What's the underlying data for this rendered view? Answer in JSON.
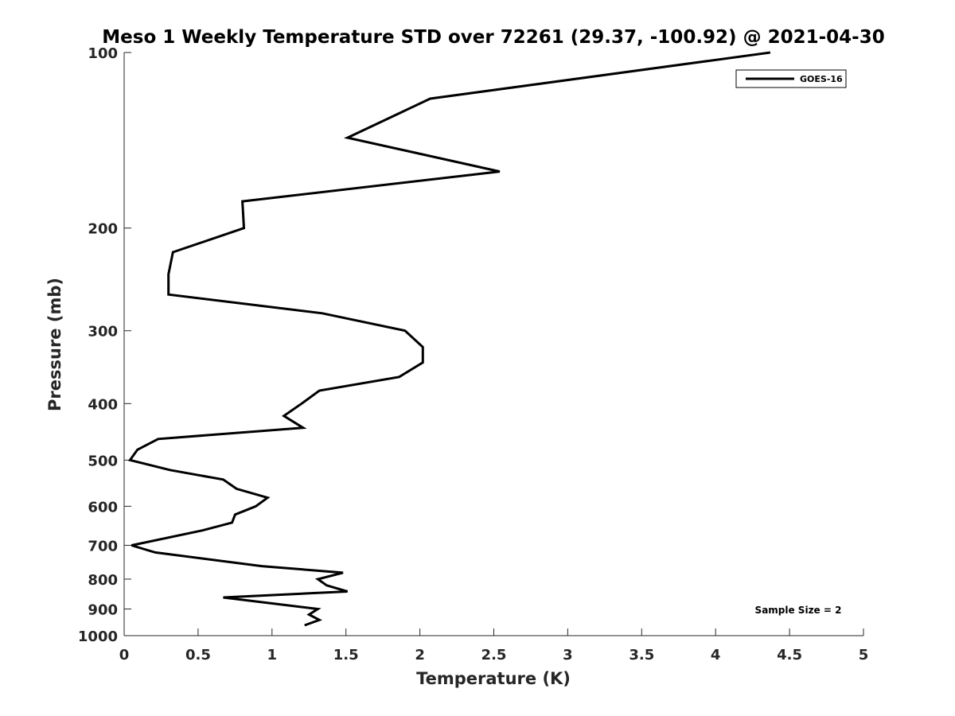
{
  "chart_data": {
    "type": "line",
    "title": "Meso 1 Weekly Temperature STD over 72261 (29.37, -100.92) @ 2021-04-30",
    "xlabel": "Temperature (K)",
    "ylabel": "Pressure (mb)",
    "xlim": [
      0,
      5
    ],
    "ylim": [
      100,
      1000
    ],
    "yscale": "log",
    "y_reversed": true,
    "grid": false,
    "xticks": [
      0,
      0.5,
      1,
      1.5,
      2,
      2.5,
      3,
      3.5,
      4,
      4.5,
      5
    ],
    "xtick_labels": [
      "0",
      "0.5",
      "1",
      "1.5",
      "2",
      "2.5",
      "3",
      "3.5",
      "4",
      "4.5",
      "5"
    ],
    "yticks": [
      100,
      200,
      300,
      400,
      500,
      600,
      700,
      800,
      900,
      1000
    ],
    "ytick_labels": [
      "100",
      "200",
      "300",
      "400",
      "500",
      "600",
      "700",
      "800",
      "900",
      "1000"
    ],
    "legend": {
      "placement": "top-right",
      "entries": [
        "GOES-16"
      ]
    },
    "annotation": "Sample Size = 2",
    "series": [
      {
        "name": "GOES-16",
        "color": "#000000",
        "points": [
          [
            4.37,
            100
          ],
          [
            2.07,
            120
          ],
          [
            1.51,
            140
          ],
          [
            2.54,
            160
          ],
          [
            0.8,
            180
          ],
          [
            0.81,
            200
          ],
          [
            0.33,
            220
          ],
          [
            0.3,
            240
          ],
          [
            0.3,
            260
          ],
          [
            1.34,
            280
          ],
          [
            1.9,
            300
          ],
          [
            2.02,
            320
          ],
          [
            2.02,
            340
          ],
          [
            1.86,
            360
          ],
          [
            1.32,
            380
          ],
          [
            1.2,
            400
          ],
          [
            1.08,
            420
          ],
          [
            1.21,
            440
          ],
          [
            0.23,
            460
          ],
          [
            0.09,
            480
          ],
          [
            0.04,
            500
          ],
          [
            0.31,
            520
          ],
          [
            0.67,
            540
          ],
          [
            0.76,
            560
          ],
          [
            0.97,
            580
          ],
          [
            0.89,
            600
          ],
          [
            0.75,
            620
          ],
          [
            0.73,
            640
          ],
          [
            0.53,
            660
          ],
          [
            0.05,
            700
          ],
          [
            0.21,
            720
          ],
          [
            0.93,
            760
          ],
          [
            1.48,
            780
          ],
          [
            1.31,
            800
          ],
          [
            1.37,
            820
          ],
          [
            1.51,
            840
          ],
          [
            0.67,
            860
          ],
          [
            1.31,
            900
          ],
          [
            1.25,
            920
          ],
          [
            1.32,
            940
          ],
          [
            1.22,
            960
          ]
        ]
      }
    ]
  }
}
